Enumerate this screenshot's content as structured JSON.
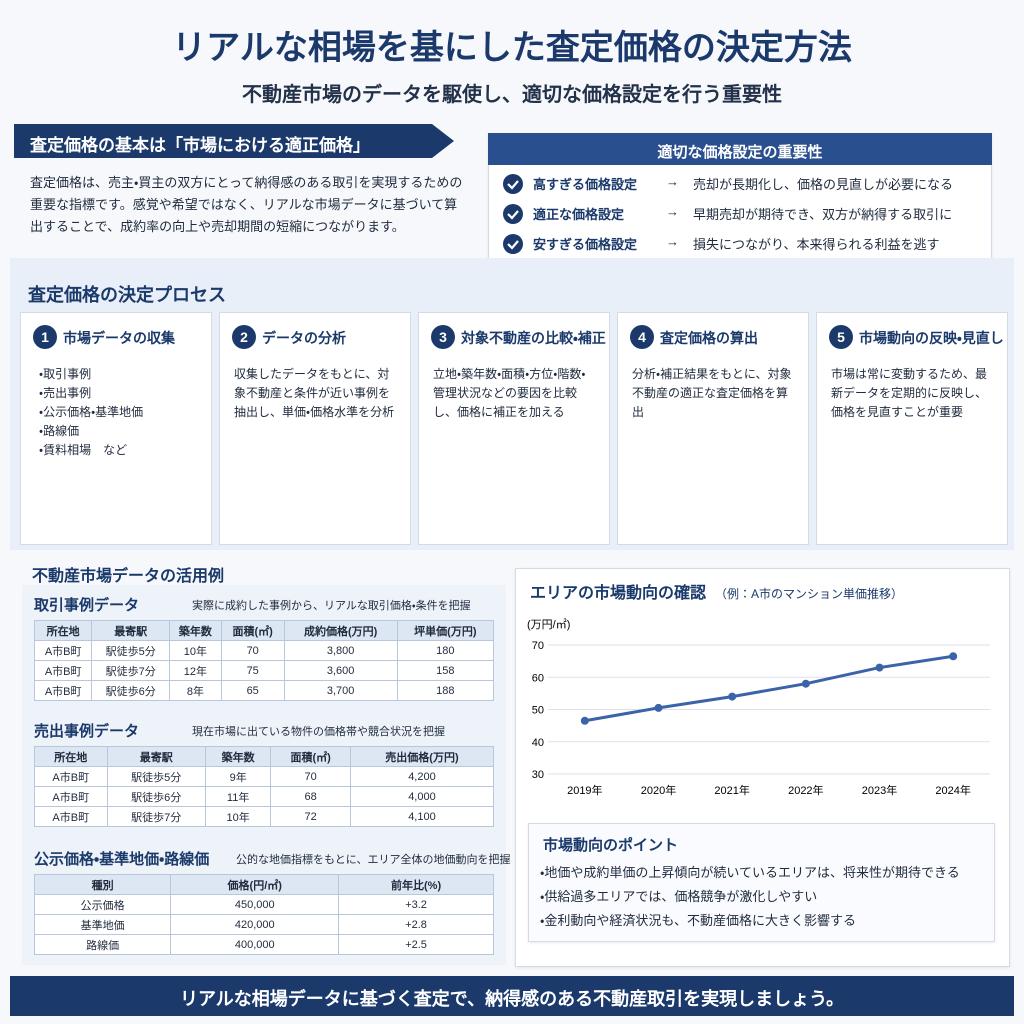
{
  "header": {
    "title": "リアルな相場を基にした査定価格の決定方法",
    "subtitle": "不動産市場のデータを駆使し、適切な価格設定を行う重要性"
  },
  "basics": {
    "heading": "査定価格の基本は「市場における適正価格」",
    "body": "査定価格は、売主・買主の双方にとって納得感のある取引を実現するための重要な指標です。感覚や希望ではなく、リアルな市場データに基づいて算出することで、成約率の向上や売却期間の短縮につながります。"
  },
  "importance": {
    "heading": "適切な価格設定の重要性",
    "items": [
      {
        "label": "高すぎる価格設定",
        "arrow": "→",
        "text": "売却が長期化し、価格の見直しが必要になる"
      },
      {
        "label": "適正な価格設定",
        "arrow": "→",
        "text": "早期売却が期待でき、双方が納得する取引に"
      },
      {
        "label": "安すぎる価格設定",
        "arrow": "→",
        "text": "損失につながり、本来得られる利益を逃す"
      }
    ]
  },
  "process": {
    "heading": "査定価格の決定プロセス",
    "steps": [
      {
        "number": "1",
        "title": "市場データの収集",
        "items": [
          "・取引事例",
          "・売出事例",
          "・公示価格・基準地価",
          "・路線価",
          "・賃料相場　など"
        ]
      },
      {
        "number": "2",
        "title": "データの分析",
        "body": "収集したデータをもとに、対象不動産と条件が近い事例を抽出し、単価・価格水準を分析"
      },
      {
        "number": "3",
        "title": "対象不動産の比較・補正",
        "body": "立地・築年数・面積・方位・階数・管理状況などの要因を比較し、価格に補正を加える"
      },
      {
        "number": "4",
        "title": "査定価格の算出",
        "body": "分析・補正結果をもとに、対象不動産の適正な査定価格を算出"
      },
      {
        "number": "5",
        "title": "市場動向の反映・見直し",
        "body": "市場は常に変動するため、最新データを定期的に反映し、価格を見直すことが重要"
      }
    ]
  },
  "usage": {
    "heading": "不動産市場データの活用例",
    "tables": [
      {
        "title": "取引事例データ",
        "note": "実際に成約した事例から、リアルな取引価格・条件を把握",
        "columns": [
          "所在地",
          "最寄駅",
          "築年数",
          "面積(㎡)",
          "成約価格(万円)",
          "坪単価(万円)"
        ],
        "rows": [
          [
            "A市B町",
            "駅徒歩5分",
            "10年",
            "70",
            "3,800",
            "180"
          ],
          [
            "A市B町",
            "駅徒歩7分",
            "12年",
            "75",
            "3,600",
            "158"
          ],
          [
            "A市B町",
            "駅徒歩6分",
            "8年",
            "65",
            "3,700",
            "188"
          ]
        ]
      },
      {
        "title": "売出事例データ",
        "note": "現在市場に出ている物件の価格帯や競合状況を把握",
        "columns": [
          "所在地",
          "最寄駅",
          "築年数",
          "面積(㎡)",
          "売出価格(万円)"
        ],
        "rows": [
          [
            "A市B町",
            "駅徒歩5分",
            "9年",
            "70",
            "4,200"
          ],
          [
            "A市B町",
            "駅徒歩6分",
            "11年",
            "68",
            "4,000"
          ],
          [
            "A市B町",
            "駅徒歩7分",
            "10年",
            "72",
            "4,100"
          ]
        ]
      },
      {
        "title": "公示価格・基準地価・路線価",
        "note": "公的な地価指標をもとに、エリア全体の地価動向を把握",
        "columns": [
          "種別",
          "価格(円/㎡)",
          "前年比(%)"
        ],
        "rows": [
          [
            "公示価格",
            "450,000",
            "+3.2"
          ],
          [
            "基準地価",
            "420,000",
            "+2.8"
          ],
          [
            "路線価",
            "400,000",
            "+2.5"
          ]
        ]
      }
    ]
  },
  "chart_data": {
    "type": "line",
    "title": "エリアの市場動向の確認",
    "subtitle": "（例：A市のマンション単価推移）",
    "y_label": "(万円/㎡)",
    "categories": [
      "2019年",
      "2020年",
      "2021年",
      "2022年",
      "2023年",
      "2024年"
    ],
    "series": [
      {
        "color": "#3a63a8",
        "values": [
          46.5,
          50.5,
          54,
          58,
          63,
          66.5
        ]
      }
    ],
    "ylim": [
      30,
      70
    ],
    "yticks": [
      30,
      40,
      50,
      60,
      70
    ],
    "grid": true
  },
  "points": {
    "heading": "市場動向のポイント",
    "items": [
      "・地価や成約単価の上昇傾向が続いているエリアは、将来性が期待できる",
      "・供給過多エリアでは、価格競争が激化しやすい",
      "・金利動向や経済状況も、不動産価格に大きく影響する"
    ]
  },
  "footer": {
    "text": "リアルな相場データに基づく査定で、納得感のある不動産取引を実現しましょう。"
  }
}
